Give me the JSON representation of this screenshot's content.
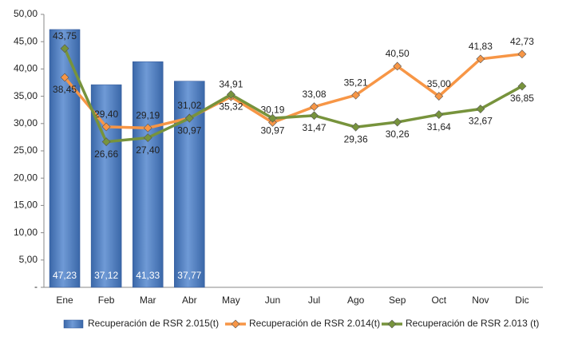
{
  "chart_data": {
    "type": "bar",
    "categories": [
      "Ene",
      "Feb",
      "Mar",
      "Abr",
      "May",
      "Jun",
      "Jul",
      "Ago",
      "Sep",
      "Oct",
      "Nov",
      "Dic"
    ],
    "series": [
      {
        "name": "Recuperación de RSR 2.015(t)",
        "type": "bar",
        "color": "#4f81bd",
        "values": [
          47.23,
          37.12,
          41.33,
          37.77,
          null,
          null,
          null,
          null,
          null,
          null,
          null,
          null
        ],
        "value_labels": [
          "47,23",
          "37,12",
          "41,33",
          "37,77",
          null,
          null,
          null,
          null,
          null,
          null,
          null,
          null
        ]
      },
      {
        "name": "Recuperación de RSR 2.014(t)",
        "type": "line",
        "color": "#f79646",
        "values": [
          38.45,
          29.4,
          29.19,
          31.02,
          34.91,
          30.19,
          33.08,
          35.21,
          40.5,
          35.0,
          41.83,
          42.73
        ],
        "value_labels": [
          "38,45",
          "29,40",
          "29,19",
          "31,02",
          "34,91",
          "30,19",
          "33,08",
          "35,21",
          "40,50",
          "35,00",
          "41,83",
          "42,73"
        ]
      },
      {
        "name": "Recuperación de RSR 2.013 (t)",
        "type": "line",
        "color": "#77933c",
        "values": [
          43.75,
          26.66,
          27.4,
          30.97,
          35.32,
          30.97,
          31.47,
          29.36,
          30.26,
          31.64,
          32.67,
          36.85
        ],
        "value_labels": [
          "43,75",
          "26,66",
          "27,40",
          "30,97",
          "35,32",
          "30,97",
          "31,47",
          "29,36",
          "30,26",
          "31,64",
          "32,67",
          "36,85"
        ]
      }
    ],
    "ylim": [
      0,
      50
    ],
    "yticks": [
      {
        "value": 0,
        "label": "-"
      },
      {
        "value": 5,
        "label": "5,00"
      },
      {
        "value": 10,
        "label": "10,00"
      },
      {
        "value": 15,
        "label": "15,00"
      },
      {
        "value": 20,
        "label": "20,00"
      },
      {
        "value": 25,
        "label": "25,00"
      },
      {
        "value": 30,
        "label": "30,00"
      },
      {
        "value": 35,
        "label": "35,00"
      },
      {
        "value": 40,
        "label": "40,00"
      },
      {
        "value": 45,
        "label": "45,00"
      },
      {
        "value": 50,
        "label": "50,00"
      }
    ],
    "legend": "bottom"
  }
}
